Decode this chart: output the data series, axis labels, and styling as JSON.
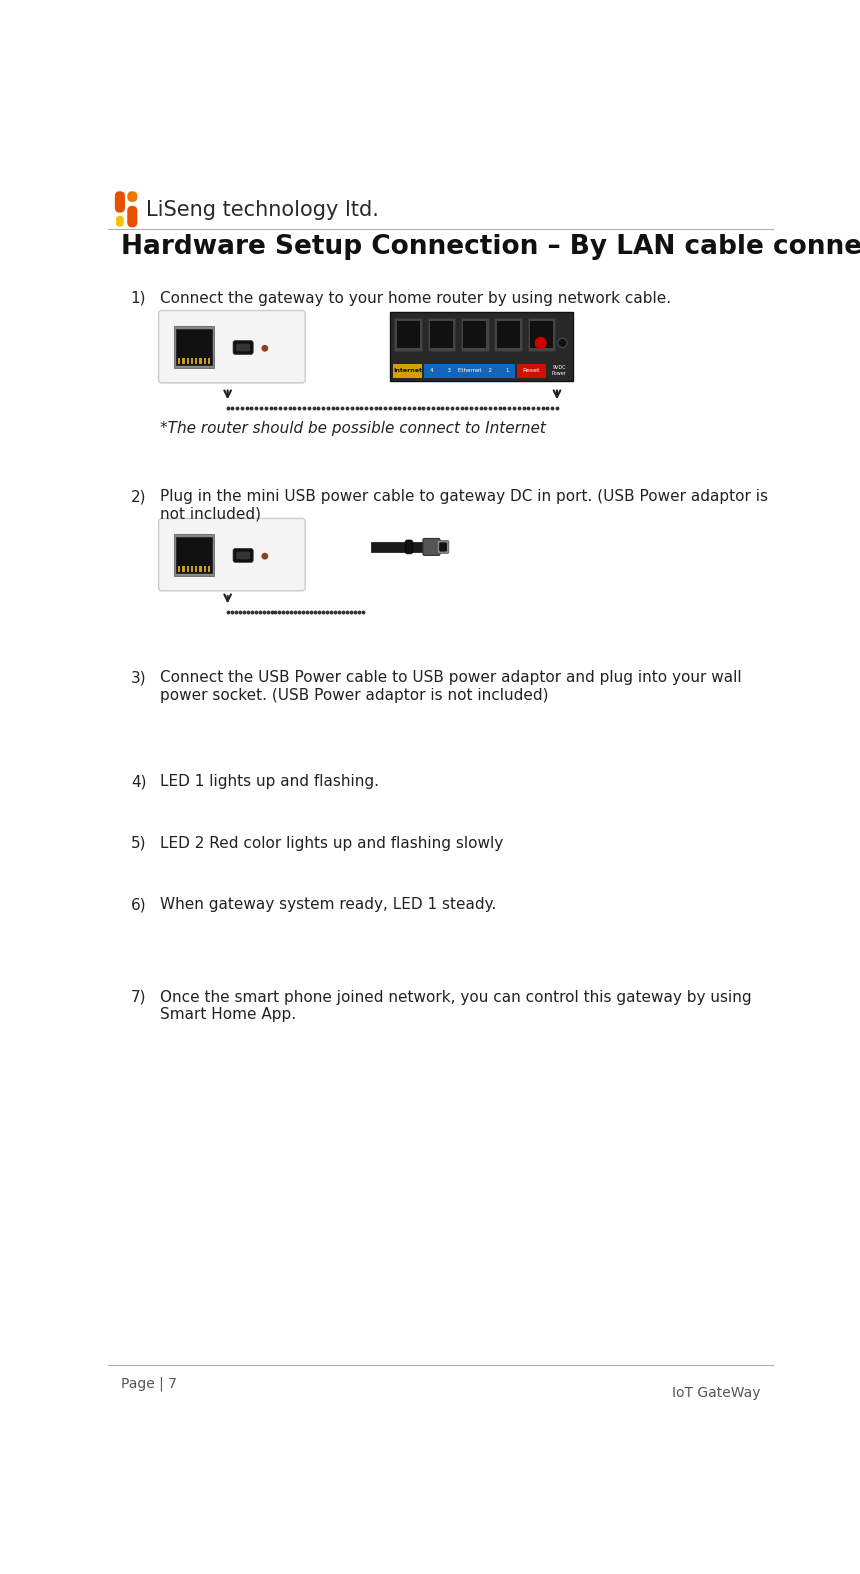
{
  "page_width": 8.6,
  "page_height": 15.74,
  "dpi": 100,
  "bg_color": "#ffffff",
  "logo_text": "LiSeng technology ltd.",
  "logo_color": "#2a2a2a",
  "logo_font_size": 15,
  "title": "Hardware Setup Connection – By LAN cable connection",
  "title_font_size": 19,
  "title_font_weight": "bold",
  "title_color": "#111111",
  "items": [
    {
      "number": "1)",
      "text": "Connect the gateway to your home router by using network cable.",
      "note": "*The router should be possible connect to Internet"
    },
    {
      "number": "2)",
      "text": "Plug in the mini USB power cable to gateway DC in port. (USB Power adaptor is\nnot included)",
      "note": ""
    },
    {
      "number": "3)",
      "text": "Connect the USB Power cable to USB power adaptor and plug into your wall\npower socket. (USB Power adaptor is not included)",
      "note": ""
    },
    {
      "number": "4)",
      "text": "LED 1 lights up and flashing.",
      "note": ""
    },
    {
      "number": "5)",
      "text": "LED 2 Red color lights up and flashing slowly",
      "note": ""
    },
    {
      "number": "6)",
      "text": "When gateway system ready, LED 1 steady.",
      "note": ""
    },
    {
      "number": "7)",
      "text": "Once the smart phone joined network, you can control this gateway by using\nSmart Home App.",
      "note": ""
    }
  ],
  "footer_left": "Page | 7",
  "footer_right": "IoT GateWay",
  "footer_font_size": 10,
  "footer_color": "#555555",
  "item_font_size": 11,
  "item_color": "#222222",
  "dot_color": "#333333",
  "arrow_color": "#222222",
  "logo_orange_dark": "#E85000",
  "logo_orange_mid": "#F07800",
  "logo_yellow": "#F5C200"
}
